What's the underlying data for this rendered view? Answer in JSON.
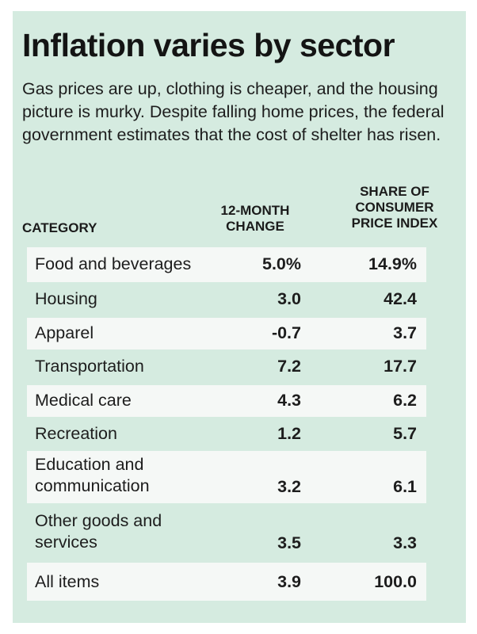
{
  "title": "Inflation varies by sector",
  "subtitle": "Gas prices are up, clothing is cheaper, and the housing picture is murky. Despite falling home prices, the federal government estimates that the cost of shelter has risen.",
  "headers": {
    "category": "CATEGORY",
    "change": "12-MONTH CHANGE",
    "share": "SHARE OF CONSUMER PRICE INDEX"
  },
  "colors": {
    "panel_background": "#d5ebe0",
    "shaded_row": "#f5f8f6"
  },
  "rows": [
    {
      "category": "Food and beverages",
      "change": "5.0%",
      "share": "14.9%"
    },
    {
      "category": "Housing",
      "change": "3.0",
      "share": "42.4"
    },
    {
      "category": "Apparel",
      "change": "-0.7",
      "share": "3.7"
    },
    {
      "category": "Transportation",
      "change": "7.2",
      "share": "17.7"
    },
    {
      "category": "Medical care",
      "change": "4.3",
      "share": "6.2"
    },
    {
      "category": "Recreation",
      "change": "1.2",
      "share": "5.7"
    },
    {
      "category": "Education and communication",
      "change": "3.2",
      "share": "6.1"
    },
    {
      "category": "Other goods and services",
      "change": "3.5",
      "share": "3.3"
    },
    {
      "category": "All items",
      "change": "3.9",
      "share": "100.0"
    }
  ]
}
